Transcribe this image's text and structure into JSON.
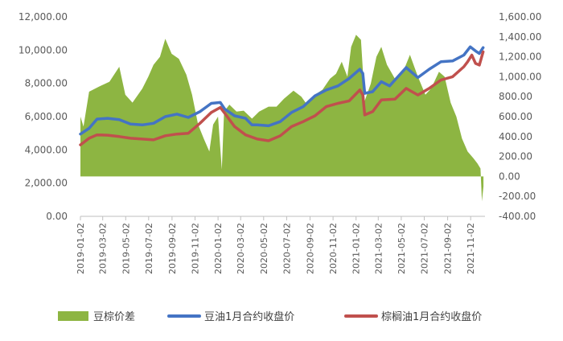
{
  "chart_data": {
    "type": "area+line",
    "x_label_dates": [
      "2019-01-02",
      "2019-03-02",
      "2019-05-02",
      "2019-07-02",
      "2019-09-02",
      "2019-11-02",
      "2020-01-02",
      "2020-03-02",
      "2020-05-02",
      "2020-07-02",
      "2020-09-02",
      "2020-11-02",
      "2021-01-02",
      "2021-03-02",
      "2021-05-02",
      "2021-07-02",
      "2021-09-02",
      "2021-11-02"
    ],
    "xlim": [
      "2019-01-02",
      "2021-12-10"
    ],
    "y_left": {
      "min": 0,
      "max": 12000,
      "ticks": [
        "0.00",
        "2,000.00",
        "4,000.00",
        "6,000.00",
        "8,000.00",
        "10,000.00",
        "12,000.00"
      ]
    },
    "y_right": {
      "min": -400,
      "max": 1600,
      "ticks": [
        "-400.00",
        "-200.00",
        "0.00",
        "200.00",
        "400.00",
        "600.00",
        "800.00",
        "1,000.00",
        "1,200.00",
        "1,400.00",
        "1,600.00"
      ]
    },
    "grid": false,
    "legend_position": "bottom",
    "series": [
      {
        "name": "豆棕价差",
        "kind": "area",
        "axis": "right",
        "color": "#8db542",
        "points": [
          [
            "2019-01-02",
            600
          ],
          [
            "2019-01-10",
            500
          ],
          [
            "2019-01-25",
            850
          ],
          [
            "2019-02-20",
            900
          ],
          [
            "2019-03-20",
            950
          ],
          [
            "2019-04-15",
            1100
          ],
          [
            "2019-05-01",
            820
          ],
          [
            "2019-05-20",
            740
          ],
          [
            "2019-06-15",
            880
          ],
          [
            "2019-07-01",
            1000
          ],
          [
            "2019-07-15",
            1120
          ],
          [
            "2019-08-01",
            1200
          ],
          [
            "2019-08-15",
            1380
          ],
          [
            "2019-09-01",
            1230
          ],
          [
            "2019-09-20",
            1180
          ],
          [
            "2019-10-10",
            1020
          ],
          [
            "2019-10-25",
            820
          ],
          [
            "2019-11-10",
            520
          ],
          [
            "2019-11-25",
            380
          ],
          [
            "2019-12-10",
            250
          ],
          [
            "2019-12-20",
            520
          ],
          [
            "2020-01-02",
            600
          ],
          [
            "2020-01-12",
            70
          ],
          [
            "2020-01-18",
            650
          ],
          [
            "2020-02-01",
            720
          ],
          [
            "2020-02-20",
            650
          ],
          [
            "2020-03-10",
            660
          ],
          [
            "2020-04-01",
            580
          ],
          [
            "2020-04-20",
            650
          ],
          [
            "2020-05-15",
            700
          ],
          [
            "2020-06-05",
            700
          ],
          [
            "2020-06-25",
            780
          ],
          [
            "2020-07-20",
            860
          ],
          [
            "2020-08-10",
            800
          ],
          [
            "2020-08-25",
            720
          ],
          [
            "2020-09-15",
            820
          ],
          [
            "2020-10-05",
            870
          ],
          [
            "2020-10-25",
            980
          ],
          [
            "2020-11-10",
            1030
          ],
          [
            "2020-11-25",
            1150
          ],
          [
            "2020-12-10",
            1000
          ],
          [
            "2020-12-20",
            1300
          ],
          [
            "2021-01-02",
            1420
          ],
          [
            "2021-01-15",
            1370
          ],
          [
            "2021-01-25",
            760
          ],
          [
            "2021-02-10",
            930
          ],
          [
            "2021-02-25",
            1200
          ],
          [
            "2021-03-10",
            1300
          ],
          [
            "2021-03-25",
            1120
          ],
          [
            "2021-04-15",
            980
          ],
          [
            "2021-05-10",
            1080
          ],
          [
            "2021-05-25",
            1220
          ],
          [
            "2021-06-15",
            1000
          ],
          [
            "2021-07-05",
            820
          ],
          [
            "2021-07-20",
            880
          ],
          [
            "2021-08-10",
            1050
          ],
          [
            "2021-08-25",
            1000
          ],
          [
            "2021-09-10",
            740
          ],
          [
            "2021-09-25",
            600
          ],
          [
            "2021-10-10",
            380
          ],
          [
            "2021-10-25",
            250
          ],
          [
            "2021-11-10",
            180
          ],
          [
            "2021-11-20",
            130
          ],
          [
            "2021-11-28",
            80
          ],
          [
            "2021-12-02",
            -250
          ],
          [
            "2021-12-06",
            -100
          ]
        ]
      },
      {
        "name": "豆油1月合约收盘价",
        "kind": "line",
        "axis": "left",
        "color": "#4474c4",
        "points": [
          [
            "2019-01-02",
            4950
          ],
          [
            "2019-01-25",
            5300
          ],
          [
            "2019-02-15",
            5850
          ],
          [
            "2019-03-15",
            5900
          ],
          [
            "2019-04-15",
            5820
          ],
          [
            "2019-05-15",
            5550
          ],
          [
            "2019-06-15",
            5500
          ],
          [
            "2019-07-15",
            5600
          ],
          [
            "2019-08-15",
            6000
          ],
          [
            "2019-09-15",
            6150
          ],
          [
            "2019-10-15",
            5950
          ],
          [
            "2019-11-15",
            6300
          ],
          [
            "2019-12-15",
            6800
          ],
          [
            "2020-01-08",
            6850
          ],
          [
            "2020-01-20",
            6450
          ],
          [
            "2020-02-15",
            6050
          ],
          [
            "2020-03-15",
            5900
          ],
          [
            "2020-04-01",
            5500
          ],
          [
            "2020-04-15",
            5500
          ],
          [
            "2020-05-15",
            5450
          ],
          [
            "2020-06-15",
            5700
          ],
          [
            "2020-07-15",
            6250
          ],
          [
            "2020-08-15",
            6600
          ],
          [
            "2020-09-15",
            7250
          ],
          [
            "2020-10-15",
            7600
          ],
          [
            "2020-11-15",
            7850
          ],
          [
            "2020-12-15",
            8300
          ],
          [
            "2021-01-12",
            8850
          ],
          [
            "2021-01-20",
            8600
          ],
          [
            "2021-01-25",
            7400
          ],
          [
            "2021-02-15",
            7500
          ],
          [
            "2021-03-10",
            8100
          ],
          [
            "2021-04-01",
            7850
          ],
          [
            "2021-04-15",
            8200
          ],
          [
            "2021-05-15",
            8950
          ],
          [
            "2021-06-15",
            8350
          ],
          [
            "2021-07-15",
            8850
          ],
          [
            "2021-08-15",
            9300
          ],
          [
            "2021-09-15",
            9350
          ],
          [
            "2021-10-15",
            9700
          ],
          [
            "2021-11-01",
            10200
          ],
          [
            "2021-11-15",
            9950
          ],
          [
            "2021-11-25",
            9800
          ],
          [
            "2021-12-05",
            10150
          ]
        ]
      },
      {
        "name": "棕榈油1月合约收盘价",
        "kind": "line",
        "axis": "left",
        "color": "#c0504d",
        "points": [
          [
            "2019-01-02",
            4300
          ],
          [
            "2019-01-25",
            4700
          ],
          [
            "2019-02-15",
            4900
          ],
          [
            "2019-03-15",
            4880
          ],
          [
            "2019-04-15",
            4800
          ],
          [
            "2019-05-15",
            4700
          ],
          [
            "2019-06-15",
            4650
          ],
          [
            "2019-07-15",
            4600
          ],
          [
            "2019-08-15",
            4850
          ],
          [
            "2019-09-15",
            4950
          ],
          [
            "2019-10-15",
            5000
          ],
          [
            "2019-11-15",
            5600
          ],
          [
            "2019-12-15",
            6250
          ],
          [
            "2020-01-08",
            6550
          ],
          [
            "2020-01-20",
            6200
          ],
          [
            "2020-02-15",
            5400
          ],
          [
            "2020-03-15",
            4900
          ],
          [
            "2020-04-15",
            4650
          ],
          [
            "2020-05-15",
            4550
          ],
          [
            "2020-06-15",
            4850
          ],
          [
            "2020-07-15",
            5400
          ],
          [
            "2020-08-15",
            5700
          ],
          [
            "2020-09-15",
            6050
          ],
          [
            "2020-10-15",
            6600
          ],
          [
            "2020-11-15",
            6800
          ],
          [
            "2020-12-15",
            6950
          ],
          [
            "2021-01-12",
            7600
          ],
          [
            "2021-01-20",
            7300
          ],
          [
            "2021-01-25",
            6100
          ],
          [
            "2021-02-15",
            6300
          ],
          [
            "2021-03-10",
            7000
          ],
          [
            "2021-04-15",
            7050
          ],
          [
            "2021-05-15",
            7700
          ],
          [
            "2021-06-15",
            7300
          ],
          [
            "2021-07-15",
            7700
          ],
          [
            "2021-08-15",
            8200
          ],
          [
            "2021-09-15",
            8400
          ],
          [
            "2021-10-15",
            9000
          ],
          [
            "2021-10-25",
            9300
          ],
          [
            "2021-11-05",
            9700
          ],
          [
            "2021-11-15",
            9200
          ],
          [
            "2021-11-25",
            9100
          ],
          [
            "2021-12-05",
            9900
          ]
        ]
      }
    ]
  }
}
